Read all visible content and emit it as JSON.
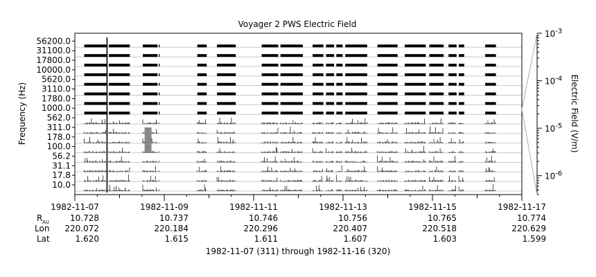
{
  "chart_data": {
    "type": "heatmap",
    "title": "Voyager 2 PWS Electric Field",
    "ylabel": "Frequency (Hz)",
    "colorbar_label": "Electric Field (V/m)",
    "colorbar_scale": "log",
    "colorbar_range": [
      4e-07,
      0.001
    ],
    "colorbar_ticks": [
      {
        "value": 0.001,
        "mant": "10",
        "exp": "-3"
      },
      {
        "value": 0.0001,
        "mant": "10",
        "exp": "-4"
      },
      {
        "value": 1e-05,
        "mant": "10",
        "exp": "-5"
      },
      {
        "value": 1e-06,
        "mant": "10",
        "exp": "-6"
      }
    ],
    "channels": [
      "56200.0",
      "31100.0",
      "17800.0",
      "10000.0",
      "5620.0",
      "3110.0",
      "1780.0",
      "1000.0",
      "562.0",
      "311.0",
      "178.0",
      "100.0",
      "56.2",
      "31.1",
      "17.8",
      "10.0"
    ],
    "x_range_days": [
      0,
      10
    ],
    "x_ticks": [
      {
        "day": 0,
        "date": "1982-11-07",
        "r": "10.728",
        "lon": "220.072",
        "lat": "1.620"
      },
      {
        "day": 2,
        "date": "1982-11-09",
        "r": "10.737",
        "lon": "220.184",
        "lat": "1.615"
      },
      {
        "day": 4,
        "date": "1982-11-11",
        "r": "10.746",
        "lon": "220.296",
        "lat": "1.611"
      },
      {
        "day": 6,
        "date": "1982-11-13",
        "r": "10.756",
        "lon": "220.407",
        "lat": "1.607"
      },
      {
        "day": 8,
        "date": "1982-11-15",
        "r": "10.765",
        "lon": "220.518",
        "lat": "1.603"
      },
      {
        "day": 10,
        "date": "1982-11-17",
        "r": "10.774",
        "lon": "220.629",
        "lat": "1.599"
      }
    ],
    "ephemeris_labels": {
      "r_main": "R",
      "r_sub": "AU",
      "lon": "Lon",
      "lat": "Lat"
    },
    "time_range_label": "1982-11-07 (311) through 1982-11-16 (320)",
    "data_segments_days": [
      [
        0.21,
        0.71
      ],
      [
        0.76,
        1.23
      ],
      [
        1.52,
        1.85
      ],
      [
        1.88,
        1.9
      ],
      [
        2.74,
        2.95
      ],
      [
        3.18,
        3.6
      ],
      [
        4.18,
        4.55
      ],
      [
        4.6,
        5.1
      ],
      [
        5.32,
        5.56
      ],
      [
        5.62,
        5.8
      ],
      [
        5.85,
        5.99
      ],
      [
        6.05,
        6.54
      ],
      [
        6.77,
        7.22
      ],
      [
        7.38,
        7.85
      ],
      [
        7.93,
        8.25
      ],
      [
        8.36,
        8.54
      ],
      [
        8.59,
        8.71
      ],
      [
        9.18,
        9.42
      ]
    ]
  }
}
